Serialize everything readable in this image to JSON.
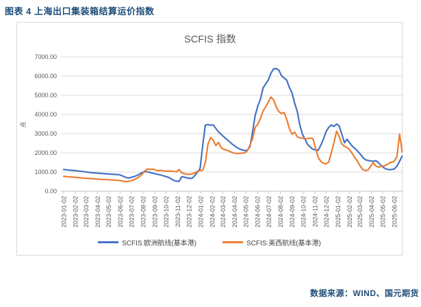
{
  "report": {
    "title": "图表 4 上海出口集装箱结算运价指数",
    "source": "数据来源：WIND、国元期货"
  },
  "chart_data": {
    "type": "line",
    "title": "SCFIS 指数",
    "grid": "horizontal",
    "legend_position": "bottom",
    "style": {
      "grid_color": "#D9D9D9",
      "axis_color": "#BFBFBF",
      "label_color": "#595959",
      "title_color": "#595959",
      "legend_text_color": "#404040",
      "accent_text_color": "#1F4E79",
      "europe_line_color": "#4472C4",
      "uswest_line_color": "#ED7D31"
    },
    "y_axis": {
      "unit": "点",
      "min": 0,
      "max": 7000,
      "tick_labels": [
        "0.00",
        "1000.00",
        "2000.00",
        "3000.00",
        "4000.00",
        "5000.00",
        "6000.00",
        "7000.00"
      ]
    },
    "x_axis": {
      "tick_labels": [
        "2023-01-02",
        "2023-02-02",
        "2023-03-02",
        "2023-04-02",
        "2023-05-02",
        "2023-06-02",
        "2023-07-02",
        "2023-08-02",
        "2023-09-02",
        "2023-10-02",
        "2023-11-02",
        "2023-12-02",
        "2024-01-02",
        "2024-02-02",
        "2024-03-02",
        "2024-04-02",
        "2024-05-02",
        "2024-06-02",
        "2024-07-02",
        "2024-08-02",
        "2024-09-02",
        "2024-10-02",
        "2024-11-02",
        "2024-12-02",
        "2025-01-02",
        "2025-02-02",
        "2025-03-02",
        "2025-04-02",
        "2025-05-02",
        "2025-06-02"
      ]
    },
    "series": [
      {
        "key": "europe",
        "name": "SCFIS:欧洲航线(基本港)",
        "color": "#4472C4",
        "start": "2023-01-02",
        "step_days": 7,
        "values": [
          1130,
          1115,
          1100,
          1090,
          1075,
          1060,
          1045,
          1030,
          1010,
          990,
          975,
          960,
          950,
          938,
          928,
          918,
          908,
          897,
          888,
          880,
          872,
          865,
          820,
          760,
          700,
          690,
          730,
          770,
          820,
          900,
          980,
          1020,
          1012,
          972,
          935,
          900,
          870,
          843,
          805,
          762,
          718,
          648,
          558,
          523,
          518,
          758,
          728,
          698,
          663,
          678,
          818,
          1000,
          1180,
          2422,
          3450,
          3470,
          3440,
          3455,
          3270,
          3085,
          2962,
          2843,
          2723,
          2602,
          2480,
          2380,
          2280,
          2205,
          2150,
          2118,
          2130,
          2320,
          3100,
          3950,
          4450,
          4800,
          5376,
          5600,
          5800,
          6150,
          6376,
          6390,
          6310,
          6020,
          5900,
          5788,
          5400,
          5140,
          4600,
          4160,
          3450,
          2965,
          2700,
          2420,
          2300,
          2180,
          2160,
          2130,
          2400,
          2720,
          3100,
          3330,
          3450,
          3380,
          3500,
          3400,
          2980,
          2524,
          2707,
          2520,
          2340,
          2230,
          2090,
          1940,
          1760,
          1640,
          1600,
          1580,
          1560,
          1590,
          1480,
          1340,
          1220,
          1150,
          1120,
          1130,
          1160,
          1300,
          1560,
          1830
        ]
      },
      {
        "key": "uswest",
        "name": "SCFIS:美西航线(基本港)",
        "color": "#ED7D31",
        "start": "2023-01-02",
        "step_days": 7,
        "values": [
          770,
          760,
          750,
          740,
          727,
          714,
          702,
          691,
          680,
          669,
          659,
          650,
          641,
          632,
          624,
          616,
          608,
          598,
          588,
          578,
          568,
          560,
          540,
          515,
          495,
          520,
          560,
          610,
          680,
          770,
          900,
          1072,
          1160,
          1132,
          1150,
          1100,
          1072,
          1085,
          1062,
          1055,
          1050,
          1045,
          1030,
          1012,
          1130,
          952,
          915,
          890,
          880,
          905,
          952,
          1040,
          1072,
          1096,
          1494,
          2450,
          2800,
          2650,
          2380,
          2540,
          2280,
          2180,
          2150,
          2090,
          2030,
          1990,
          1960,
          1970,
          1985,
          2000,
          2100,
          2400,
          2750,
          3325,
          3500,
          3800,
          4180,
          4400,
          4650,
          4905,
          4760,
          4400,
          4150,
          4050,
          4100,
          3750,
          3270,
          2970,
          3080,
          2840,
          2780,
          2760,
          2720,
          2740,
          2770,
          2740,
          2240,
          1760,
          1550,
          1450,
          1430,
          1520,
          2000,
          2520,
          3130,
          2850,
          2460,
          2340,
          2280,
          2160,
          1960,
          1730,
          1550,
          1310,
          1130,
          1072,
          1100,
          1310,
          1490,
          1310,
          1250,
          1300,
          1310,
          1370,
          1450,
          1520,
          1560,
          1800,
          2980,
          2050
        ]
      }
    ]
  }
}
